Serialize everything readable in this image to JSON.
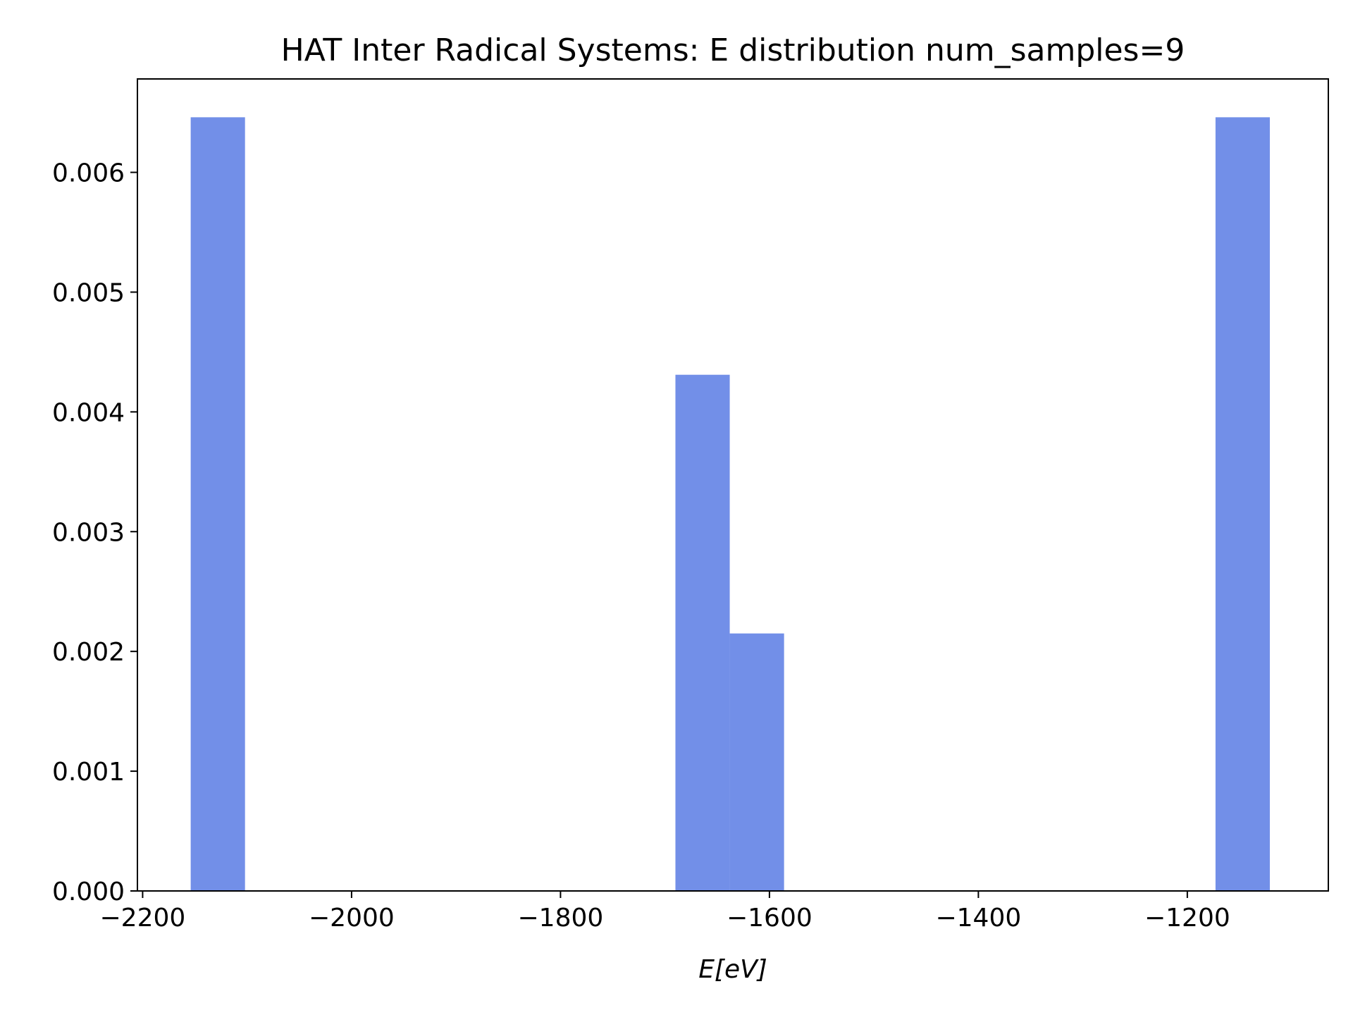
{
  "chart_data": {
    "type": "bar",
    "title": "HAT Inter Radical Systems: E distribution num_samples=9",
    "xlabel": "E[eV]",
    "ylabel": "",
    "xlim": [
      -2205,
      -1065
    ],
    "ylim": [
      0,
      0.00678
    ],
    "x_ticks": [
      -2200,
      -2000,
      -1800,
      -1600,
      -1400,
      -1200
    ],
    "x_tick_labels": [
      "−2200",
      "−2000",
      "−1800",
      "−1600",
      "−1400",
      "−1200"
    ],
    "y_ticks": [
      0.0,
      0.001,
      0.002,
      0.003,
      0.004,
      0.005,
      0.006
    ],
    "y_tick_labels": [
      "0.000",
      "0.001",
      "0.002",
      "0.003",
      "0.004",
      "0.005",
      "0.006"
    ],
    "bar_color": "#728FE8",
    "grid": false,
    "bins": [
      {
        "x0": -2154,
        "x1": -2102,
        "value": 0.00646
      },
      {
        "x0": -1690,
        "x1": -1638,
        "value": 0.00431
      },
      {
        "x0": -1638,
        "x1": -1586,
        "value": 0.00215
      },
      {
        "x0": -1173,
        "x1": -1121,
        "value": 0.00646
      }
    ]
  }
}
